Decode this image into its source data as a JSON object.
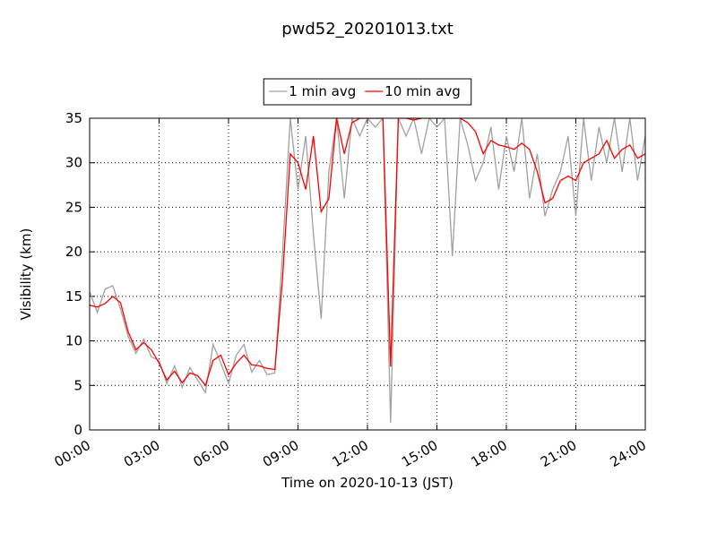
{
  "chart_data": {
    "type": "line",
    "title": "pwd52_20201013.txt",
    "xlabel": "Time on 2020-10-13 (JST)",
    "ylabel": "Visibility (km)",
    "x": [
      "00:00",
      "00:20",
      "00:40",
      "01:00",
      "01:20",
      "01:40",
      "02:00",
      "02:20",
      "02:40",
      "03:00",
      "03:20",
      "03:40",
      "04:00",
      "04:20",
      "04:40",
      "05:00",
      "05:20",
      "05:40",
      "06:00",
      "06:20",
      "06:40",
      "07:00",
      "07:20",
      "07:40",
      "08:00",
      "08:20",
      "08:40",
      "09:00",
      "09:20",
      "09:40",
      "10:00",
      "10:20",
      "10:40",
      "11:00",
      "11:20",
      "11:40",
      "12:00",
      "12:20",
      "12:40",
      "13:00",
      "13:20",
      "13:40",
      "14:00",
      "14:20",
      "14:40",
      "15:00",
      "15:20",
      "15:40",
      "16:00",
      "16:20",
      "16:40",
      "17:00",
      "17:20",
      "17:40",
      "18:00",
      "18:20",
      "18:40",
      "19:00",
      "19:20",
      "19:40",
      "20:00",
      "20:20",
      "20:40",
      "21:00",
      "21:20",
      "21:40",
      "22:00",
      "22:20",
      "22:40",
      "23:00",
      "23:20",
      "23:40",
      "24:00"
    ],
    "series": [
      {
        "name": "1 min avg",
        "color": "#a0a0a0",
        "values": [
          15.5,
          13.2,
          15.8,
          16.2,
          13.6,
          10.5,
          8.6,
          10.2,
          8.2,
          7.8,
          5.2,
          7.2,
          4.8,
          7.0,
          5.6,
          4.2,
          9.6,
          7.5,
          5.2,
          8.4,
          9.6,
          6.5,
          7.8,
          6.2,
          6.4,
          20,
          35,
          27,
          33,
          22,
          12.5,
          29,
          35,
          26,
          35,
          33,
          35,
          34,
          35,
          0.8,
          35,
          33,
          35,
          31,
          35,
          34,
          35,
          19.5,
          35,
          32,
          28,
          30,
          34,
          27,
          33,
          29,
          35,
          26,
          31,
          24,
          27,
          29,
          33,
          24,
          35,
          28,
          34,
          30,
          35,
          29,
          35,
          28,
          33
        ]
      },
      {
        "name": "10 min avg",
        "color": "#ff0000",
        "values": [
          14,
          13.8,
          14.2,
          15,
          14.3,
          11,
          9,
          9.8,
          9,
          7.5,
          5.6,
          6.6,
          5.3,
          6.4,
          6.1,
          5.0,
          7.8,
          8.4,
          6.2,
          7.5,
          8.4,
          7.3,
          7.2,
          6.9,
          6.8,
          17,
          31,
          30,
          27,
          33,
          24.5,
          26,
          35,
          31,
          34.5,
          35,
          35,
          35,
          35,
          7.1,
          35,
          35,
          34.8,
          35,
          35,
          35,
          35,
          35,
          35,
          34.5,
          33.5,
          31,
          32.5,
          32,
          31.8,
          31.5,
          32.2,
          31.5,
          29,
          25.5,
          26,
          28,
          28.5,
          28,
          30,
          30.5,
          31,
          32.5,
          30.5,
          31.5,
          32,
          30.5,
          31
        ]
      }
    ],
    "xlim": [
      "00:00",
      "24:00"
    ],
    "xticks": [
      "00:00",
      "03:00",
      "06:00",
      "09:00",
      "12:00",
      "15:00",
      "18:00",
      "21:00",
      "24:00"
    ],
    "ylim": [
      0,
      35
    ],
    "yticks": [
      0,
      5,
      10,
      15,
      20,
      25,
      30,
      35
    ],
    "grid": true,
    "legend": "top"
  }
}
